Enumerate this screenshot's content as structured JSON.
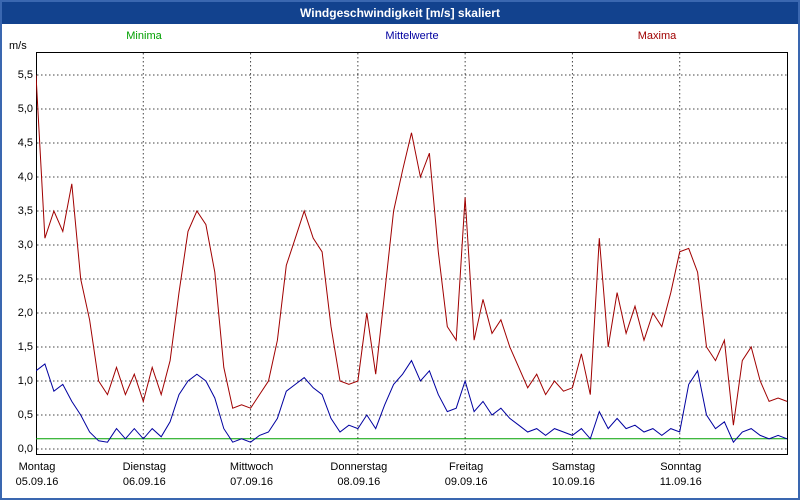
{
  "window": {
    "title": "Windgeschwindigkeit [m/s] skaliert"
  },
  "legend": {
    "minima": "Minima",
    "mittelwerte": "Mittelwerte",
    "maxima": "Maxima"
  },
  "axis": {
    "unit": "m/s",
    "yticks": [
      "0,0",
      "0,5",
      "1,0",
      "1,5",
      "2,0",
      "2,5",
      "3,0",
      "3,5",
      "4,0",
      "4,5",
      "5,0",
      "5,5"
    ],
    "days": [
      {
        "name": "Montag",
        "date": "05.09.16"
      },
      {
        "name": "Dienstag",
        "date": "06.09.16"
      },
      {
        "name": "Mittwoch",
        "date": "07.09.16"
      },
      {
        "name": "Donnerstag",
        "date": "08.09.16"
      },
      {
        "name": "Freitag",
        "date": "09.09.16"
      },
      {
        "name": "Samstag",
        "date": "10.09.16"
      },
      {
        "name": "Sonntag",
        "date": "11.09.16"
      }
    ]
  },
  "colors": {
    "frame": "#3a67b0",
    "titlebar": "#12428e",
    "minima": "#00a000",
    "mittelwerte": "#0000a0",
    "maxima": "#a00000",
    "grid": "#444444"
  },
  "chart_data": {
    "type": "line",
    "title": "Windgeschwindigkeit [m/s] skaliert",
    "ylabel": "m/s",
    "ylim": [
      0,
      5.5
    ],
    "ytick_step": 0.5,
    "grid": "dashed",
    "legend_position": "top",
    "x_axis": {
      "span_days": 7,
      "day_labels": [
        "Montag 05.09.16",
        "Dienstag 06.09.16",
        "Mittwoch 07.09.16",
        "Donnerstag 08.09.16",
        "Freitag 09.09.16",
        "Samstag 10.09.16",
        "Sonntag 11.09.16"
      ]
    },
    "series": [
      {
        "name": "Minima",
        "color": "#00a000",
        "values": [
          0.15,
          0.15
        ]
      },
      {
        "name": "Mittelwerte",
        "color": "#0000a0",
        "values": [
          1.15,
          1.25,
          0.85,
          0.95,
          0.7,
          0.5,
          0.25,
          0.12,
          0.1,
          0.3,
          0.15,
          0.3,
          0.15,
          0.3,
          0.18,
          0.4,
          0.8,
          1.0,
          1.1,
          1.0,
          0.75,
          0.3,
          0.1,
          0.15,
          0.1,
          0.2,
          0.25,
          0.45,
          0.85,
          0.95,
          1.05,
          0.9,
          0.8,
          0.45,
          0.25,
          0.35,
          0.3,
          0.5,
          0.3,
          0.65,
          0.95,
          1.1,
          1.3,
          1.0,
          1.15,
          0.8,
          0.55,
          0.6,
          1.0,
          0.55,
          0.7,
          0.5,
          0.6,
          0.45,
          0.35,
          0.25,
          0.3,
          0.2,
          0.3,
          0.25,
          0.2,
          0.3,
          0.15,
          0.55,
          0.3,
          0.45,
          0.3,
          0.35,
          0.25,
          0.3,
          0.2,
          0.3,
          0.25,
          0.95,
          1.15,
          0.5,
          0.3,
          0.4,
          0.1,
          0.25,
          0.3,
          0.2,
          0.15,
          0.2,
          0.15
        ]
      },
      {
        "name": "Maxima",
        "color": "#a00000",
        "values": [
          5.5,
          3.1,
          3.5,
          3.2,
          3.9,
          2.5,
          1.9,
          1.0,
          0.8,
          1.2,
          0.8,
          1.1,
          0.7,
          1.2,
          0.8,
          1.3,
          2.3,
          3.2,
          3.5,
          3.3,
          2.6,
          1.2,
          0.6,
          0.65,
          0.6,
          0.8,
          1.0,
          1.6,
          2.7,
          3.1,
          3.5,
          3.1,
          2.9,
          1.8,
          1.0,
          0.95,
          1.0,
          2.0,
          1.1,
          2.3,
          3.5,
          4.1,
          4.65,
          4.0,
          4.35,
          2.9,
          1.8,
          1.6,
          3.7,
          1.6,
          2.2,
          1.7,
          1.9,
          1.5,
          1.2,
          0.9,
          1.1,
          0.8,
          1.0,
          0.85,
          0.9,
          1.4,
          0.8,
          3.1,
          1.5,
          2.3,
          1.7,
          2.1,
          1.6,
          2.0,
          1.8,
          2.3,
          2.9,
          2.95,
          2.6,
          1.5,
          1.3,
          1.6,
          0.35,
          1.3,
          1.5,
          1.0,
          0.7,
          0.75,
          0.7
        ]
      }
    ]
  }
}
